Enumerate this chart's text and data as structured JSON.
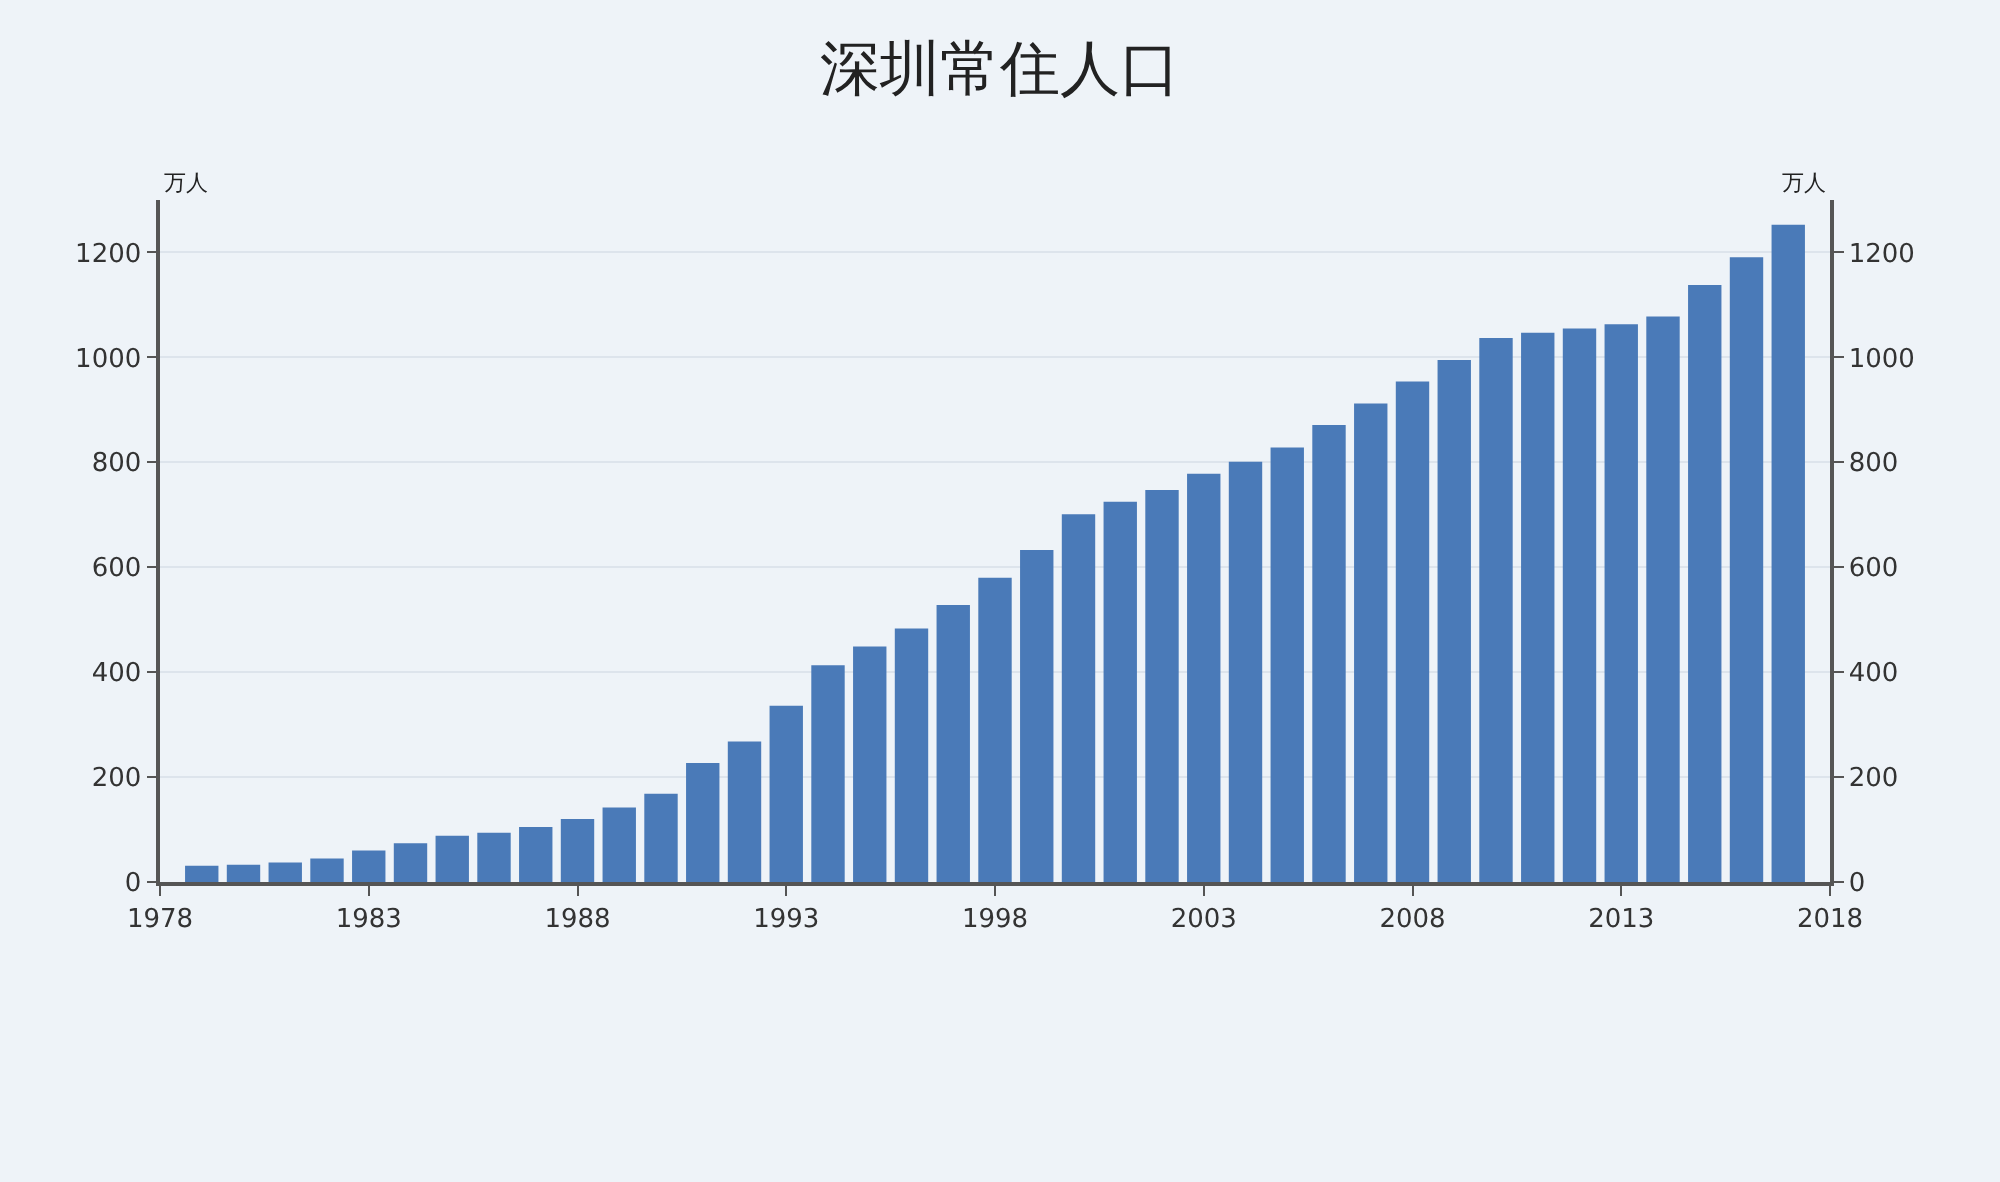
{
  "chart_data": {
    "type": "bar",
    "title": "深圳常住人口",
    "ylabel": "万人",
    "y2label": "万人",
    "x": [
      1979,
      1980,
      1981,
      1982,
      1983,
      1984,
      1985,
      1986,
      1987,
      1988,
      1989,
      1990,
      1991,
      1992,
      1993,
      1994,
      1995,
      1996,
      1997,
      1998,
      1999,
      2000,
      2001,
      2002,
      2003,
      2004,
      2005,
      2006,
      2007,
      2008,
      2009,
      2010,
      2011,
      2012,
      2013,
      2014,
      2015,
      2016,
      2017
    ],
    "values": [
      31,
      33,
      37,
      45,
      60,
      74,
      88,
      94,
      105,
      120,
      142,
      168,
      227,
      268,
      336,
      413,
      449,
      483,
      528,
      580,
      633,
      701,
      725,
      747,
      778,
      801,
      828,
      871,
      912,
      954,
      995,
      1037,
      1047,
      1055,
      1063,
      1078,
      1138,
      1191,
      1253
    ],
    "color": "#4a7ab8",
    "xlim": [
      1978,
      2018
    ],
    "xticks": [
      1978,
      1983,
      1988,
      1993,
      1998,
      2003,
      2008,
      2013,
      2018
    ],
    "ylim": [
      0,
      1300
    ],
    "yticks": [
      0,
      200,
      400,
      600,
      800,
      1000,
      1200
    ],
    "y2lim": [
      0,
      1300
    ],
    "y2ticks": [
      0,
      200,
      400,
      600,
      800,
      1000,
      1200
    ],
    "grid": "y"
  }
}
